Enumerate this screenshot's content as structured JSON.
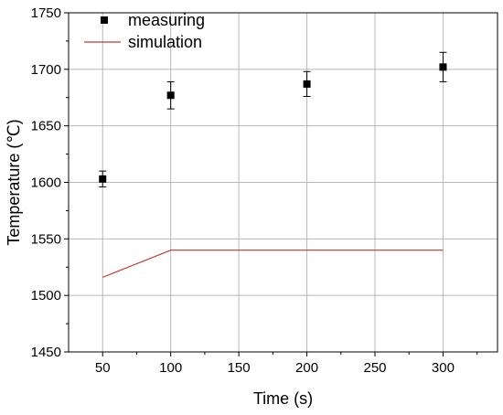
{
  "chart_data": {
    "type": "scatter",
    "xlabel": "Time (s)",
    "ylabel": "Temperature (℃)",
    "xlim": [
      25,
      340
    ],
    "ylim": [
      1450,
      1750
    ],
    "x_ticks": [
      50,
      100,
      150,
      200,
      250,
      300
    ],
    "y_ticks": [
      1450,
      1500,
      1550,
      1600,
      1650,
      1700,
      1750
    ],
    "grid": true,
    "legend_position": "top-left",
    "series": [
      {
        "name": "measuring",
        "kind": "scatter",
        "marker": "square",
        "color": "#000000",
        "x": [
          50,
          100,
          200,
          300
        ],
        "y": [
          1603,
          1677,
          1687,
          1702
        ],
        "error": [
          7,
          12,
          11,
          13
        ]
      },
      {
        "name": "simulation",
        "kind": "line",
        "color": "#c0392b",
        "x": [
          50,
          100,
          150,
          200,
          250,
          300
        ],
        "y": [
          1516,
          1540,
          1540,
          1540,
          1540,
          1540
        ]
      }
    ]
  }
}
